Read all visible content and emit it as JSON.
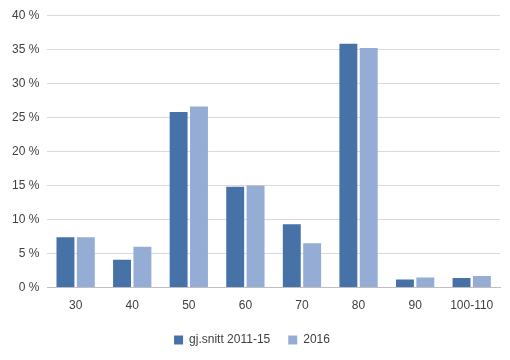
{
  "chart_data": {
    "type": "bar",
    "categories": [
      "30",
      "40",
      "50",
      "60",
      "70",
      "80",
      "90",
      "100-110"
    ],
    "series": [
      {
        "name": "gj.snitt 2011-15",
        "color": "#4672a8",
        "values": [
          7.4,
          4.1,
          25.8,
          14.8,
          9.3,
          35.8,
          1.2,
          1.4
        ]
      },
      {
        "name": "2016",
        "color": "#95acd5",
        "values": [
          7.4,
          6.0,
          26.6,
          15.0,
          6.5,
          35.2,
          1.5,
          1.7
        ]
      }
    ],
    "ylim": [
      0,
      40
    ],
    "yticks": [
      {
        "value": 0,
        "label": "0 %"
      },
      {
        "value": 5,
        "label": "5 %"
      },
      {
        "value": 10,
        "label": "10 %"
      },
      {
        "value": 15,
        "label": "15 %"
      },
      {
        "value": 20,
        "label": "20 %"
      },
      {
        "value": 25,
        "label": "25 %"
      },
      {
        "value": 30,
        "label": "30 %"
      },
      {
        "value": 35,
        "label": "35 %"
      },
      {
        "value": 40,
        "label": "40 %"
      }
    ],
    "grid": true,
    "legend": "bottom"
  }
}
